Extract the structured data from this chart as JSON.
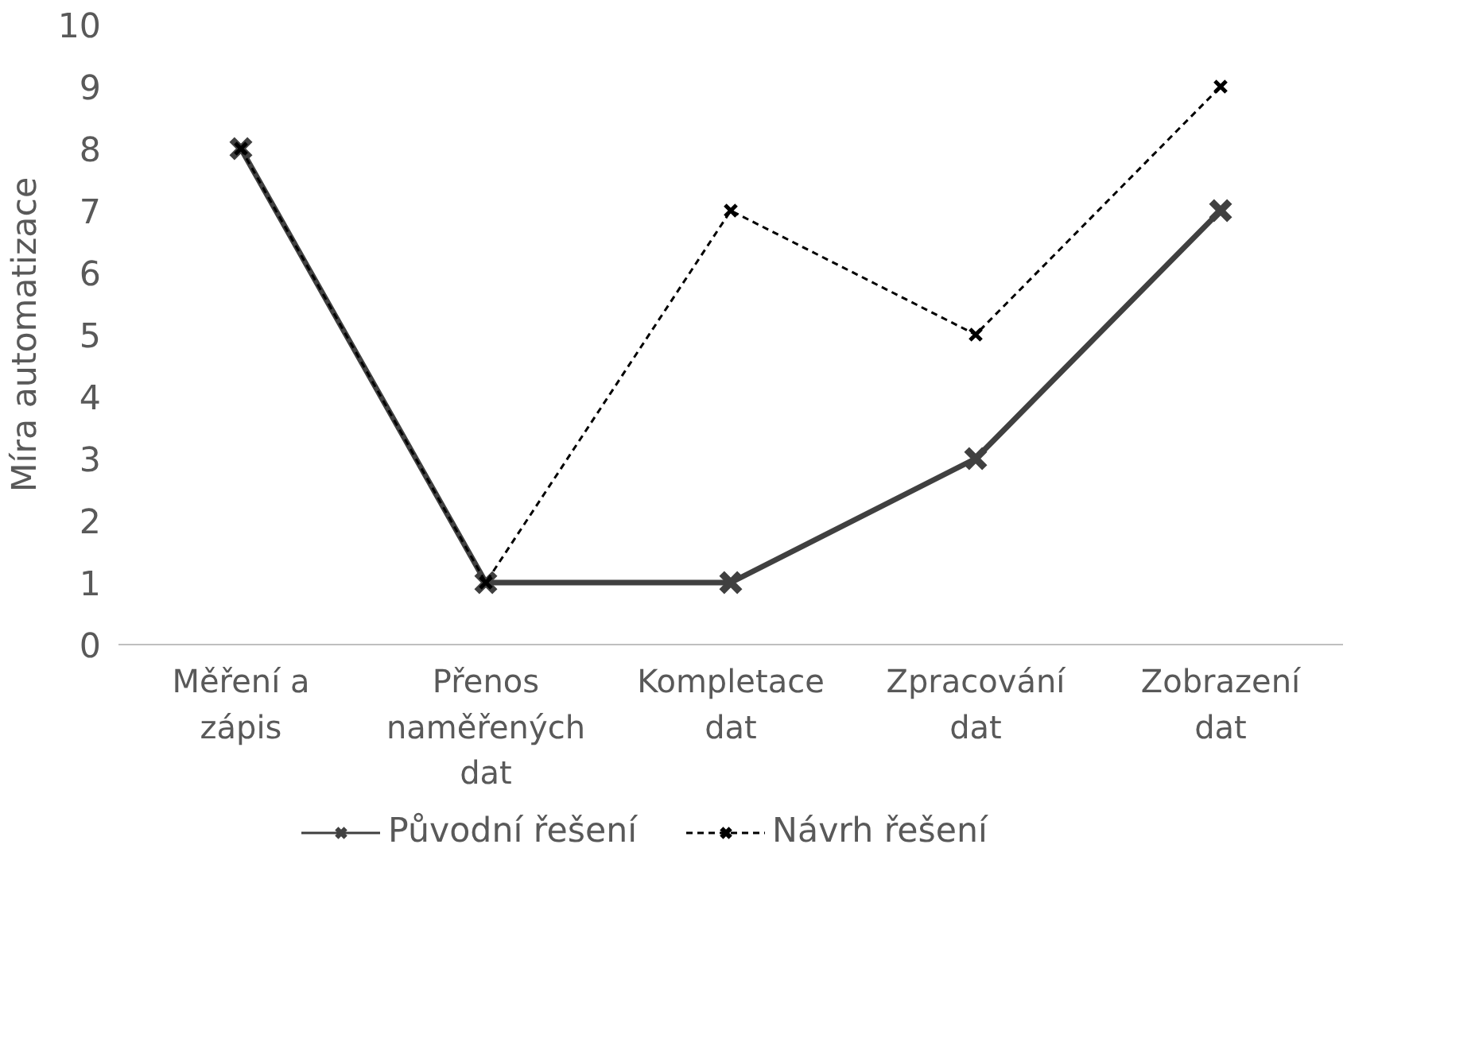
{
  "chart_data": {
    "type": "line",
    "ylabel": "Míra automatizace",
    "categories": [
      "Měření a zápis",
      "Přenos naměřených dat",
      "Kompletace dat",
      "Zpracování dat",
      "Zobrazení dat"
    ],
    "series": [
      {
        "name": "Původní řešení",
        "color": "#404040",
        "values": [
          8,
          1,
          1,
          3,
          7
        ],
        "line_style": "solid"
      },
      {
        "name": "Návrh řešení",
        "color": "#000000",
        "values": [
          8,
          1,
          7,
          5,
          9
        ],
        "line_style": "dashed"
      }
    ],
    "ylim": [
      0,
      10
    ],
    "yticks": [
      0,
      1,
      2,
      3,
      4,
      5,
      6,
      7,
      8,
      9,
      10
    ],
    "grid": false,
    "legend": "bottom",
    "marker": "cross"
  }
}
